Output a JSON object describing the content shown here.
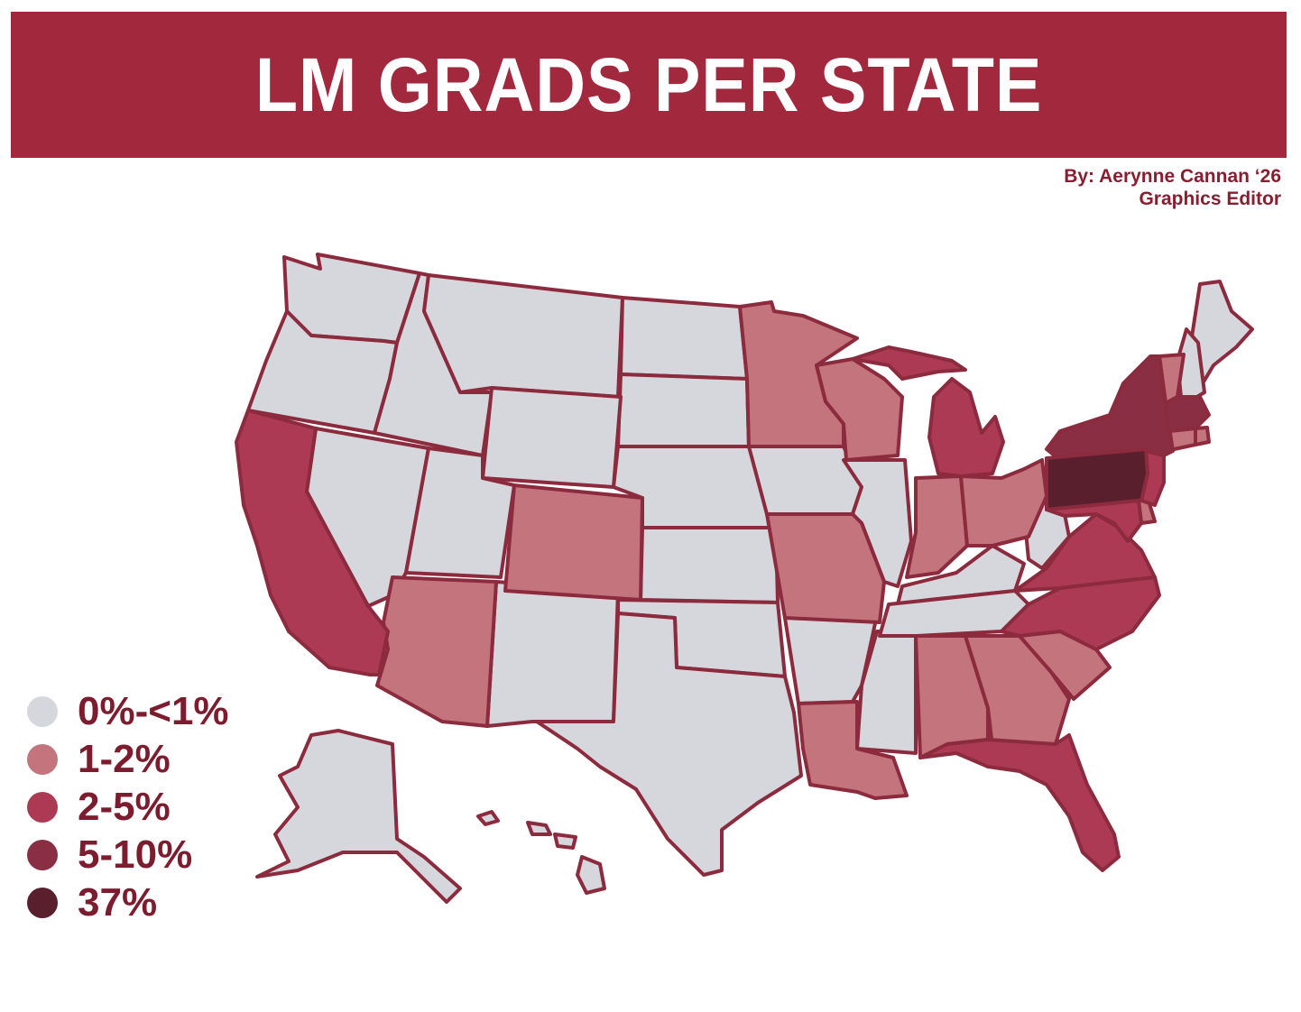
{
  "header": {
    "title": "LM GRADS PER STATE",
    "byline_1": "By: Aerynne Cannan ‘26",
    "byline_2": "Graphics Editor"
  },
  "colors": {
    "banner": "#a1283d",
    "border": "#8c2a3e",
    "bucket_0": "#d6d7dd",
    "bucket_1": "#c4747c",
    "bucket_2": "#ad3a55",
    "bucket_3": "#8a2e43",
    "bucket_4": "#5a1f2c"
  },
  "legend": [
    {
      "label": "0%-<1%",
      "color": "#d6d7dd"
    },
    {
      "label": "1-2%",
      "color": "#c4747c"
    },
    {
      "label": "2-5%",
      "color": "#ad3a55"
    },
    {
      "label": "5-10%",
      "color": "#8a2e43"
    },
    {
      "label": "37%",
      "color": "#5a1f2c"
    }
  ],
  "states": {
    "WA": 0,
    "OR": 0,
    "ID": 0,
    "MT": 0,
    "ND": 0,
    "WY": 0,
    "SD": 0,
    "NV": 0,
    "UT": 0,
    "NE": 0,
    "KS": 0,
    "NM": 0,
    "OK": 0,
    "TX": 0,
    "IA": 0,
    "AR": 0,
    "MS": 0,
    "IL": 0,
    "KY": 0,
    "TN": 0,
    "WV": 0,
    "ME": 0,
    "NH": 0,
    "AK": 0,
    "HI": 0,
    "MN": 1,
    "WI": 1,
    "CO": 1,
    "AZ": 1,
    "MO": 1,
    "LA": 1,
    "IN": 1,
    "OH": 1,
    "AL": 1,
    "GA": 1,
    "SC": 1,
    "VT": 1,
    "CT": 1,
    "RI": 1,
    "DE": 1,
    "CA": 2,
    "MI": 2,
    "VA": 2,
    "NC": 2,
    "FL": 2,
    "NJ": 2,
    "MD": 2,
    "NY": 3,
    "MA": 3,
    "PA": 4
  }
}
